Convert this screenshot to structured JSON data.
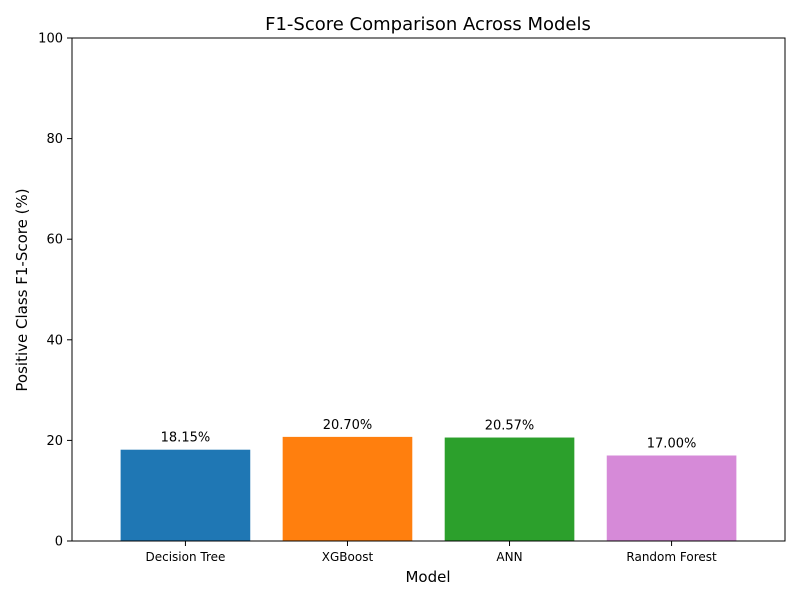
{
  "chart_data": {
    "type": "bar",
    "title": "F1-Score Comparison Across Models",
    "xlabel": "Model",
    "ylabel": "Positive Class F1-Score (%)",
    "ylim": [
      0,
      100
    ],
    "yticks": [
      0,
      20,
      40,
      60,
      80,
      100
    ],
    "grid": false,
    "categories": [
      "Decision Tree",
      "XGBoost",
      "ANN",
      "Random Forest"
    ],
    "values": [
      18.15,
      20.7,
      20.57,
      17.0
    ],
    "value_labels": [
      "18.15%",
      "20.70%",
      "20.57%",
      "17.00%"
    ],
    "colors": [
      "#1f77b4",
      "#ff7f0e",
      "#2ca02c",
      "#d68ad8"
    ]
  }
}
